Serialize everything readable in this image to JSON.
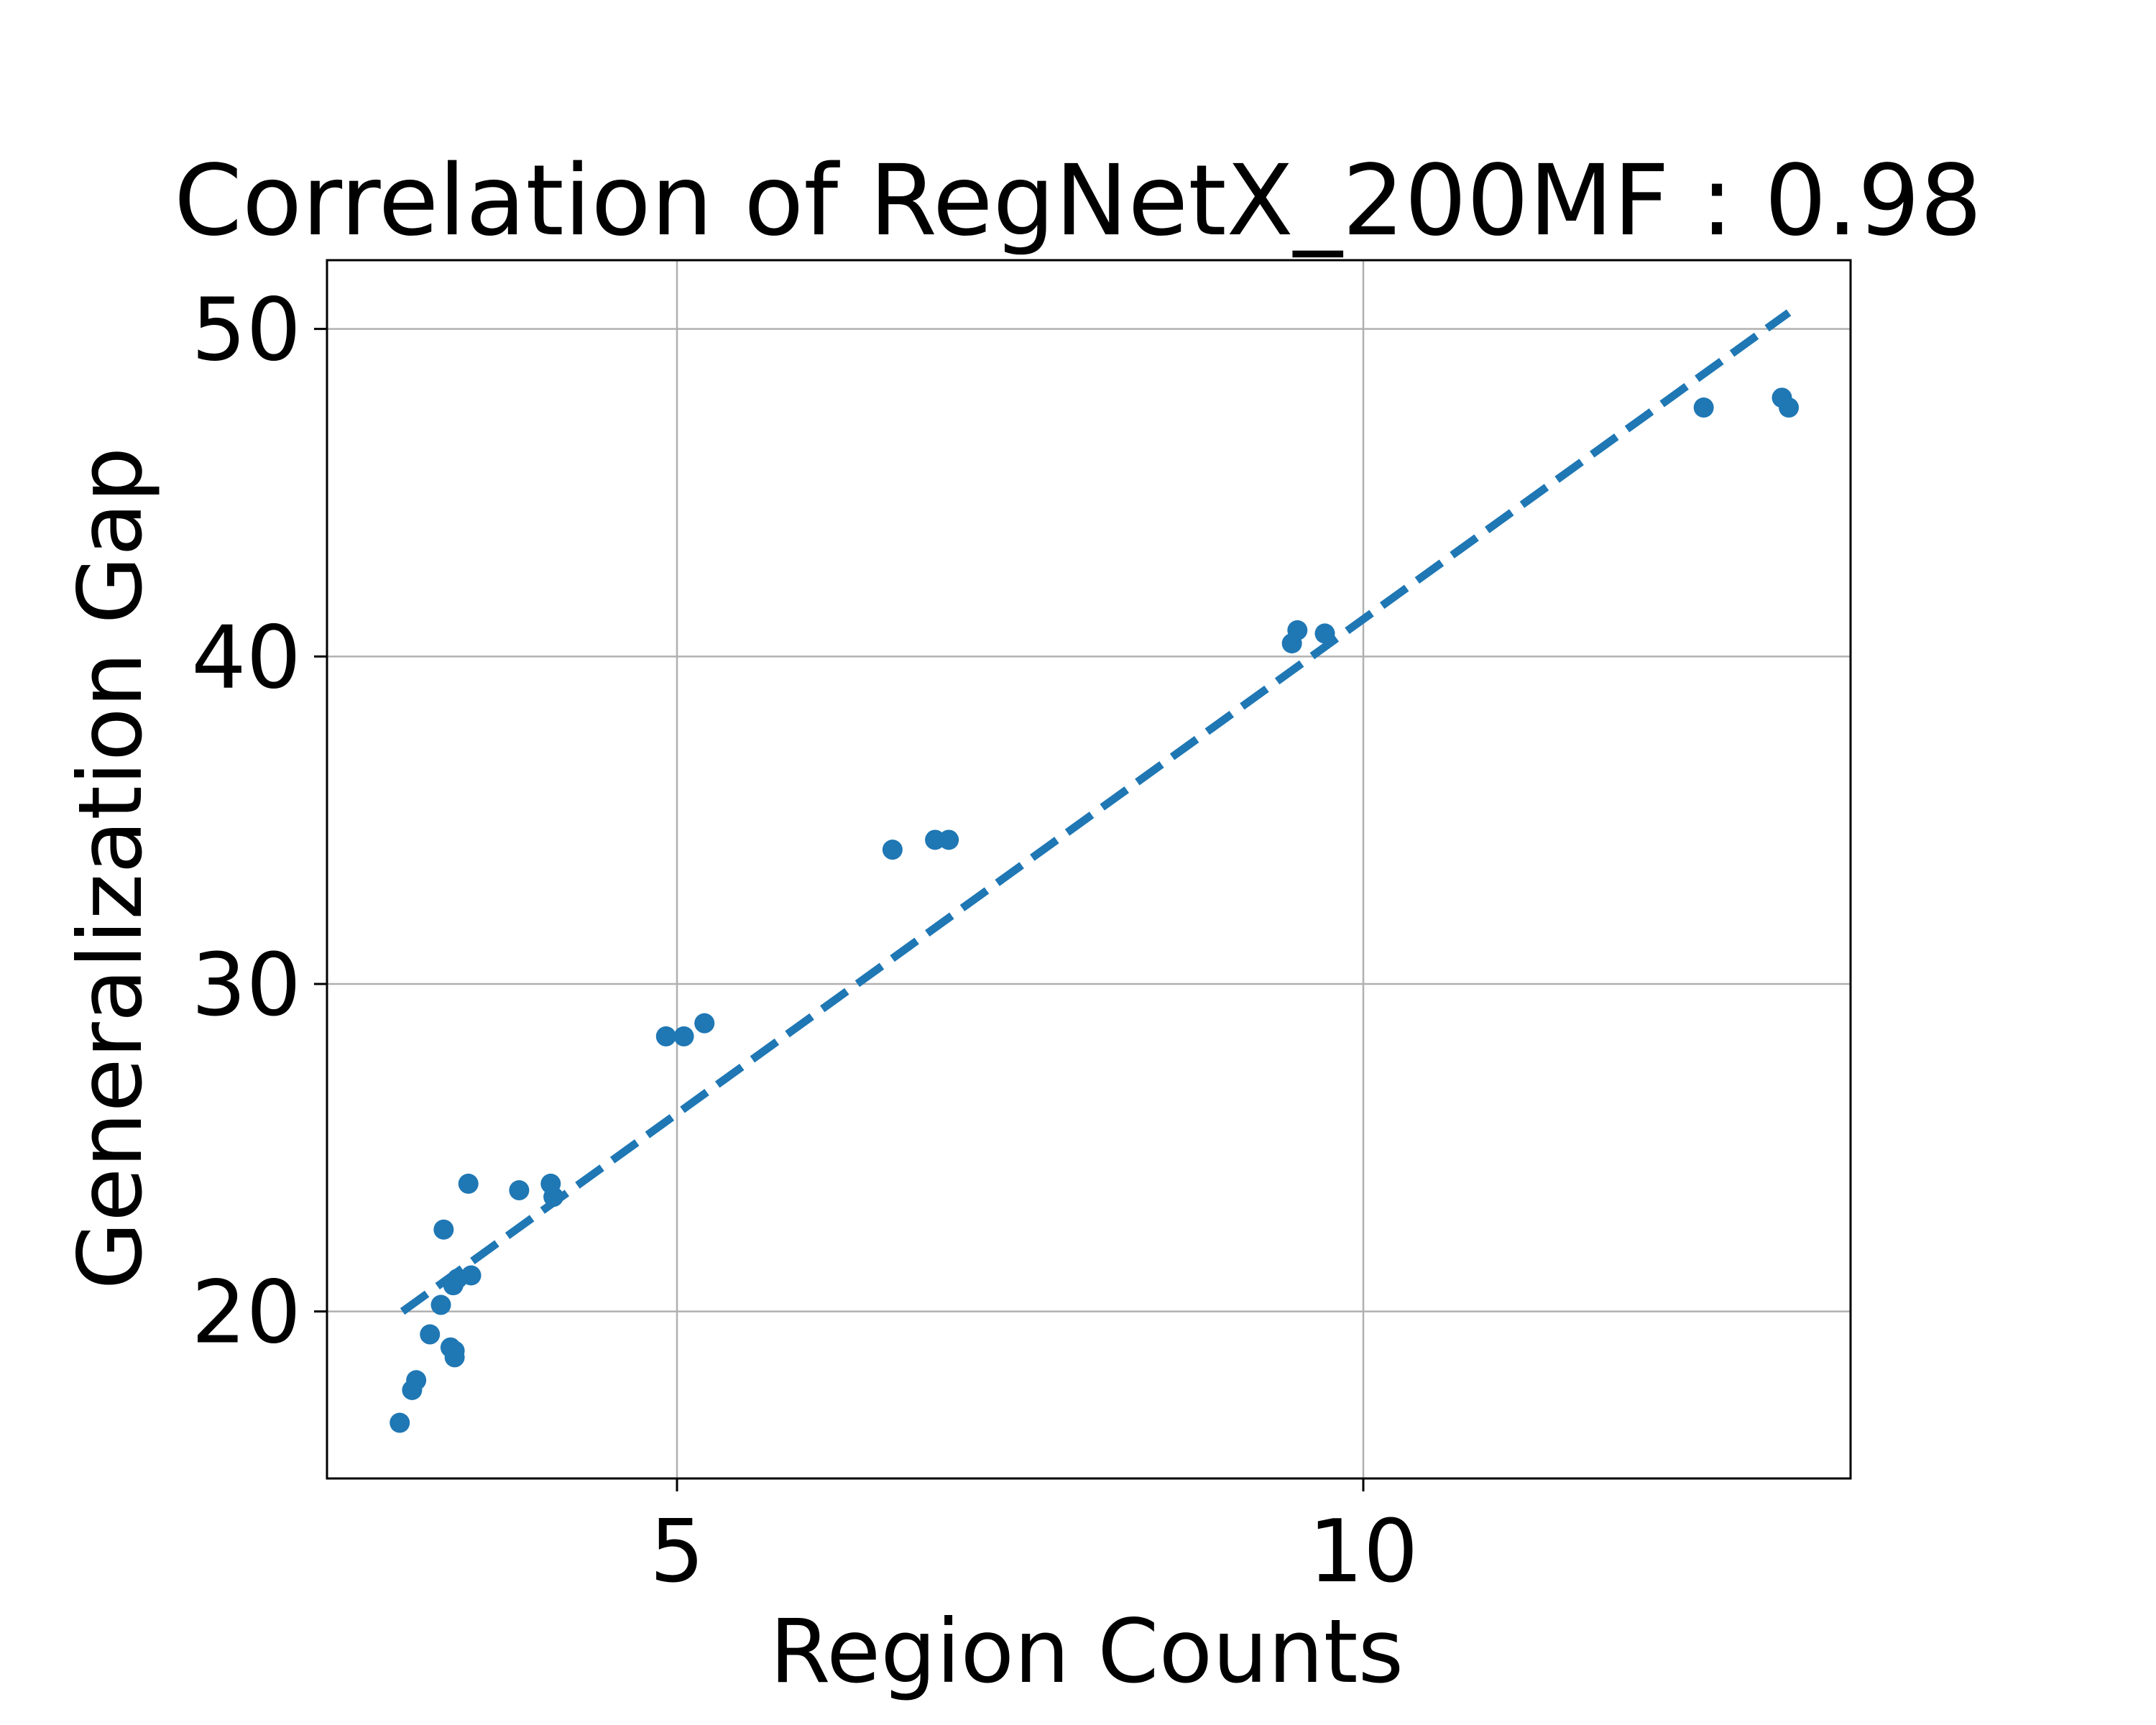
{
  "chart_data": {
    "type": "scatter",
    "title": "Correlation of RegNetX_200MF : 0.98",
    "xlabel": "Region Counts",
    "ylabel": "Generalization Gap",
    "xlim": [
      2.45,
      13.55
    ],
    "ylim": [
      14.9,
      52.1
    ],
    "grid": true,
    "colors": {
      "points": "#1f77b4",
      "trendline": "#1f77b4",
      "grid": "#b0b0b0",
      "axes": "#000000"
    },
    "x_ticks": [
      {
        "value": 5,
        "label": "5"
      },
      {
        "value": 10,
        "label": "10"
      }
    ],
    "y_ticks": [
      {
        "value": 20,
        "label": "20"
      },
      {
        "value": 30,
        "label": "30"
      },
      {
        "value": 40,
        "label": "40"
      },
      {
        "value": 50,
        "label": "50"
      }
    ],
    "series": [
      {
        "points": [
          {
            "x": 2.98,
            "y": 16.6
          },
          {
            "x": 3.07,
            "y": 17.6
          },
          {
            "x": 3.1,
            "y": 17.9
          },
          {
            "x": 3.2,
            "y": 19.3
          },
          {
            "x": 3.28,
            "y": 20.2
          },
          {
            "x": 3.3,
            "y": 22.5
          },
          {
            "x": 3.35,
            "y": 18.9
          },
          {
            "x": 3.37,
            "y": 20.8
          },
          {
            "x": 3.38,
            "y": 18.6
          },
          {
            "x": 3.38,
            "y": 18.8
          },
          {
            "x": 3.4,
            "y": 21.0
          },
          {
            "x": 3.48,
            "y": 23.9
          },
          {
            "x": 3.5,
            "y": 21.1
          },
          {
            "x": 3.85,
            "y": 23.7
          },
          {
            "x": 4.08,
            "y": 23.9
          },
          {
            "x": 4.1,
            "y": 23.5
          },
          {
            "x": 4.92,
            "y": 28.4
          },
          {
            "x": 5.05,
            "y": 28.4
          },
          {
            "x": 5.2,
            "y": 28.8
          },
          {
            "x": 6.57,
            "y": 34.1
          },
          {
            "x": 6.88,
            "y": 34.4
          },
          {
            "x": 6.98,
            "y": 34.4
          },
          {
            "x": 9.48,
            "y": 40.4
          },
          {
            "x": 9.52,
            "y": 40.8
          },
          {
            "x": 9.72,
            "y": 40.7
          },
          {
            "x": 12.48,
            "y": 47.6
          },
          {
            "x": 13.05,
            "y": 47.9
          },
          {
            "x": 13.1,
            "y": 47.6
          }
        ]
      }
    ],
    "trendline": {
      "style": "dashed",
      "points": [
        {
          "x": 3.0,
          "y": 20.0
        },
        {
          "x": 13.1,
          "y": 50.5
        }
      ]
    }
  }
}
